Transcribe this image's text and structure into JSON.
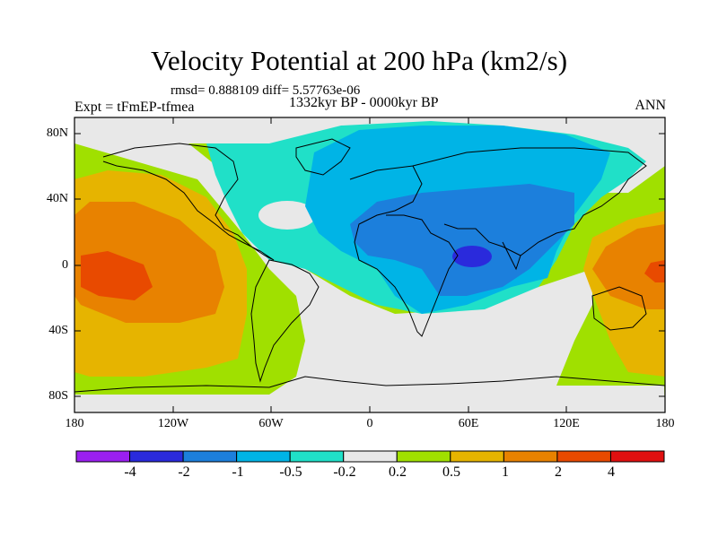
{
  "title": "Velocity Potential at 200 hPa (km2/s)",
  "stats": "rmsd= 0.888109 diff= 5.57763e-06",
  "experiment": "Expt = tFmEP-tfmea",
  "period": "1332kyr BP - 0000kyr BP",
  "season": "ANN",
  "lat_labels": [
    "80N",
    "40N",
    "0",
    "40S",
    "80S"
  ],
  "lon_labels": [
    "180",
    "120W",
    "60W",
    "0",
    "60E",
    "120E",
    "180"
  ],
  "colorbar": {
    "colors": [
      "#9b1ff0",
      "#2a2adc",
      "#1c7fdc",
      "#00b4e6",
      "#20e0c8",
      "#e8e8e8",
      "#a0e000",
      "#e6b400",
      "#e88200",
      "#e84a00",
      "#e01010"
    ],
    "labels": [
      "-4",
      "-2",
      "-1",
      "-0.5",
      "-0.2",
      "0.2",
      "0.5",
      "1",
      "2",
      "4"
    ]
  }
}
